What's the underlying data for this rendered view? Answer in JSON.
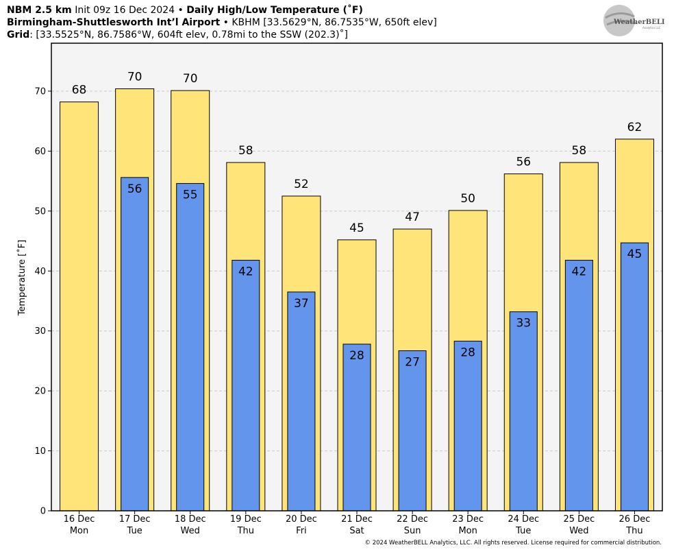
{
  "header": {
    "line1_bold1": "NBM 2.5 km",
    "line1_text1": " Init 09z 16 Dec 2024 • ",
    "line1_bold2": "Daily High/Low Temperature (˚F)",
    "line2_bold": "Birmingham-Shuttlesworth Int’l Airport",
    "line2_text": " • KBHM [33.5629°N, 86.7535°W, 650ft elev]",
    "line3_bold": "Grid",
    "line3_text": ": [33.5525°N, 86.7586°W, 604ft elev, 0.78mi to the SSW (202.3)˚]"
  },
  "logo": {
    "text": "WeatherBELL",
    "sub": "Analytics LLC"
  },
  "copyright": "© 2024 WeatherBELL Analytics, LLC. All rights reserved. License required for commercial distribution.",
  "chart_data": {
    "type": "bar",
    "ylabel": "Temperature [˚F]",
    "ylim": [
      0,
      78
    ],
    "yticks": [
      0,
      10,
      20,
      30,
      40,
      50,
      60,
      70
    ],
    "grid": true,
    "categories": [
      "16 Dec|Mon",
      "17 Dec|Tue",
      "18 Dec|Wed",
      "19 Dec|Thu",
      "20 Dec|Fri",
      "21 Dec|Sat",
      "22 Dec|Sun",
      "23 Dec|Mon",
      "24 Dec|Tue",
      "25 Dec|Wed",
      "26 Dec|Thu"
    ],
    "series": [
      {
        "name": "High",
        "color": "#ffe47a",
        "values": [
          68.2,
          70.4,
          70.1,
          58.1,
          52.5,
          45.2,
          47.0,
          50.1,
          56.2,
          58.1,
          62.0
        ],
        "labels": [
          "68",
          "70",
          "70",
          "58",
          "52",
          "45",
          "47",
          "50",
          "56",
          "58",
          "62"
        ]
      },
      {
        "name": "Low",
        "color": "#6495ed",
        "values": [
          null,
          55.6,
          54.6,
          41.8,
          36.5,
          27.8,
          26.7,
          28.3,
          33.2,
          41.8,
          44.7
        ],
        "labels": [
          "",
          "56",
          "55",
          "42",
          "37",
          "28",
          "27",
          "28",
          "33",
          "42",
          "45"
        ]
      }
    ]
  }
}
